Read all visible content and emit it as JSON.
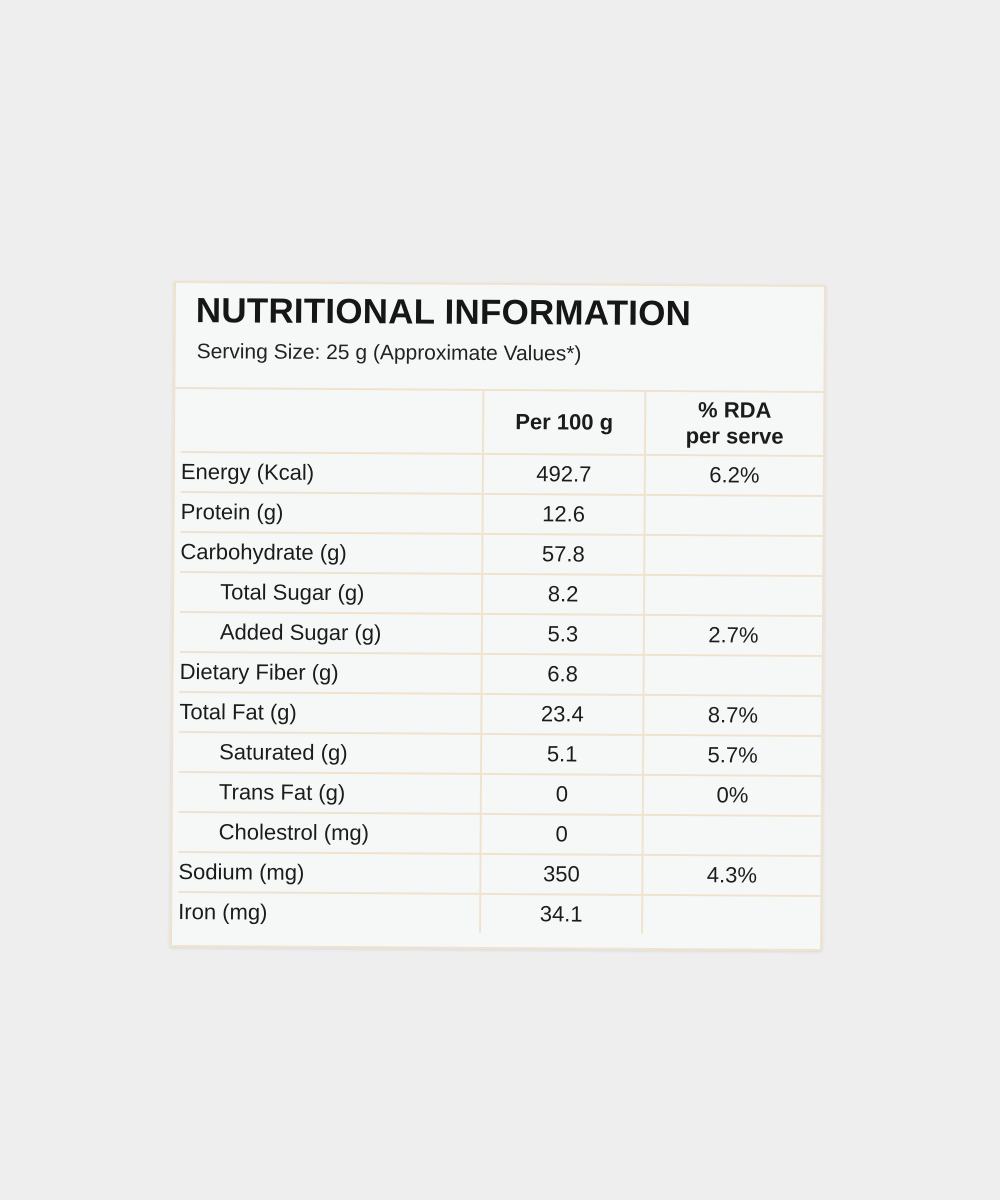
{
  "label": {
    "title": "NUTRITIONAL INFORMATION",
    "serving_size": "Serving Size: 25 g (Approximate Values*)",
    "columns": {
      "nutrient": "",
      "per_100g": "Per 100 g",
      "rda_line1": "% RDA",
      "rda_line2": "per serve"
    },
    "rows": [
      {
        "nutrient": "Energy (Kcal)",
        "per_100g": "492.7",
        "rda": "6.2%"
      },
      {
        "nutrient": "Protein (g)",
        "per_100g": "12.6",
        "rda": ""
      },
      {
        "nutrient": "Carbohydrate (g)",
        "per_100g": "57.8",
        "rda": ""
      },
      {
        "nutrient": "Total Sugar (g)",
        "per_100g": "8.2",
        "rda": ""
      },
      {
        "nutrient": "Added Sugar (g)",
        "per_100g": "5.3",
        "rda": "2.7%"
      },
      {
        "nutrient": "Dietary Fiber (g)",
        "per_100g": "6.8",
        "rda": ""
      },
      {
        "nutrient": "Total Fat (g)",
        "per_100g": "23.4",
        "rda": "8.7%"
      },
      {
        "nutrient": "Saturated (g)",
        "per_100g": "5.1",
        "rda": "5.7%"
      },
      {
        "nutrient": "Trans Fat (g)",
        "per_100g": "0",
        "rda": "0%"
      },
      {
        "nutrient": "Cholestrol (mg)",
        "per_100g": "0",
        "rda": ""
      },
      {
        "nutrient": "Sodium (mg)",
        "per_100g": "350",
        "rda": "4.3%"
      },
      {
        "nutrient": "Iron (mg)",
        "per_100g": "34.1",
        "rda": ""
      }
    ]
  },
  "colors": {
    "background": "#eeeeee",
    "label_paper": "#f6f8f8",
    "grid_lines": "#efe3cf",
    "text": "#1b1b1b"
  }
}
